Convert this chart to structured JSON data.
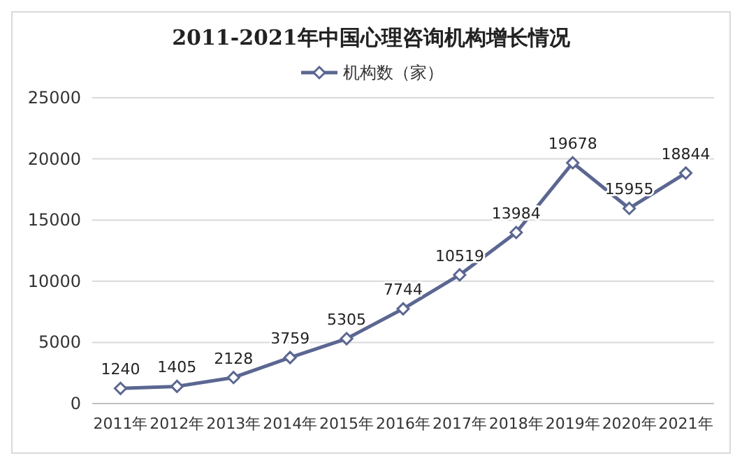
{
  "chart_data": {
    "type": "line",
    "title": "2011-2021年中国心理咨询机构增长情况",
    "categories": [
      "2011年",
      "2012年",
      "2013年",
      "2014年",
      "2015年",
      "2016年",
      "2017年",
      "2018年",
      "2019年",
      "2020年",
      "2021年"
    ],
    "series": [
      {
        "name": "机构数（家）",
        "color": "#5b6791",
        "values": [
          1240,
          1405,
          2128,
          3759,
          5305,
          7744,
          10519,
          13984,
          19678,
          15955,
          18844
        ]
      }
    ],
    "ylim": [
      0,
      25000
    ],
    "yticks": [
      0,
      5000,
      10000,
      15000,
      20000,
      25000
    ],
    "grid": "y",
    "legend": "top",
    "marker": "diamond",
    "line_style": "solid",
    "data_labels": true
  }
}
